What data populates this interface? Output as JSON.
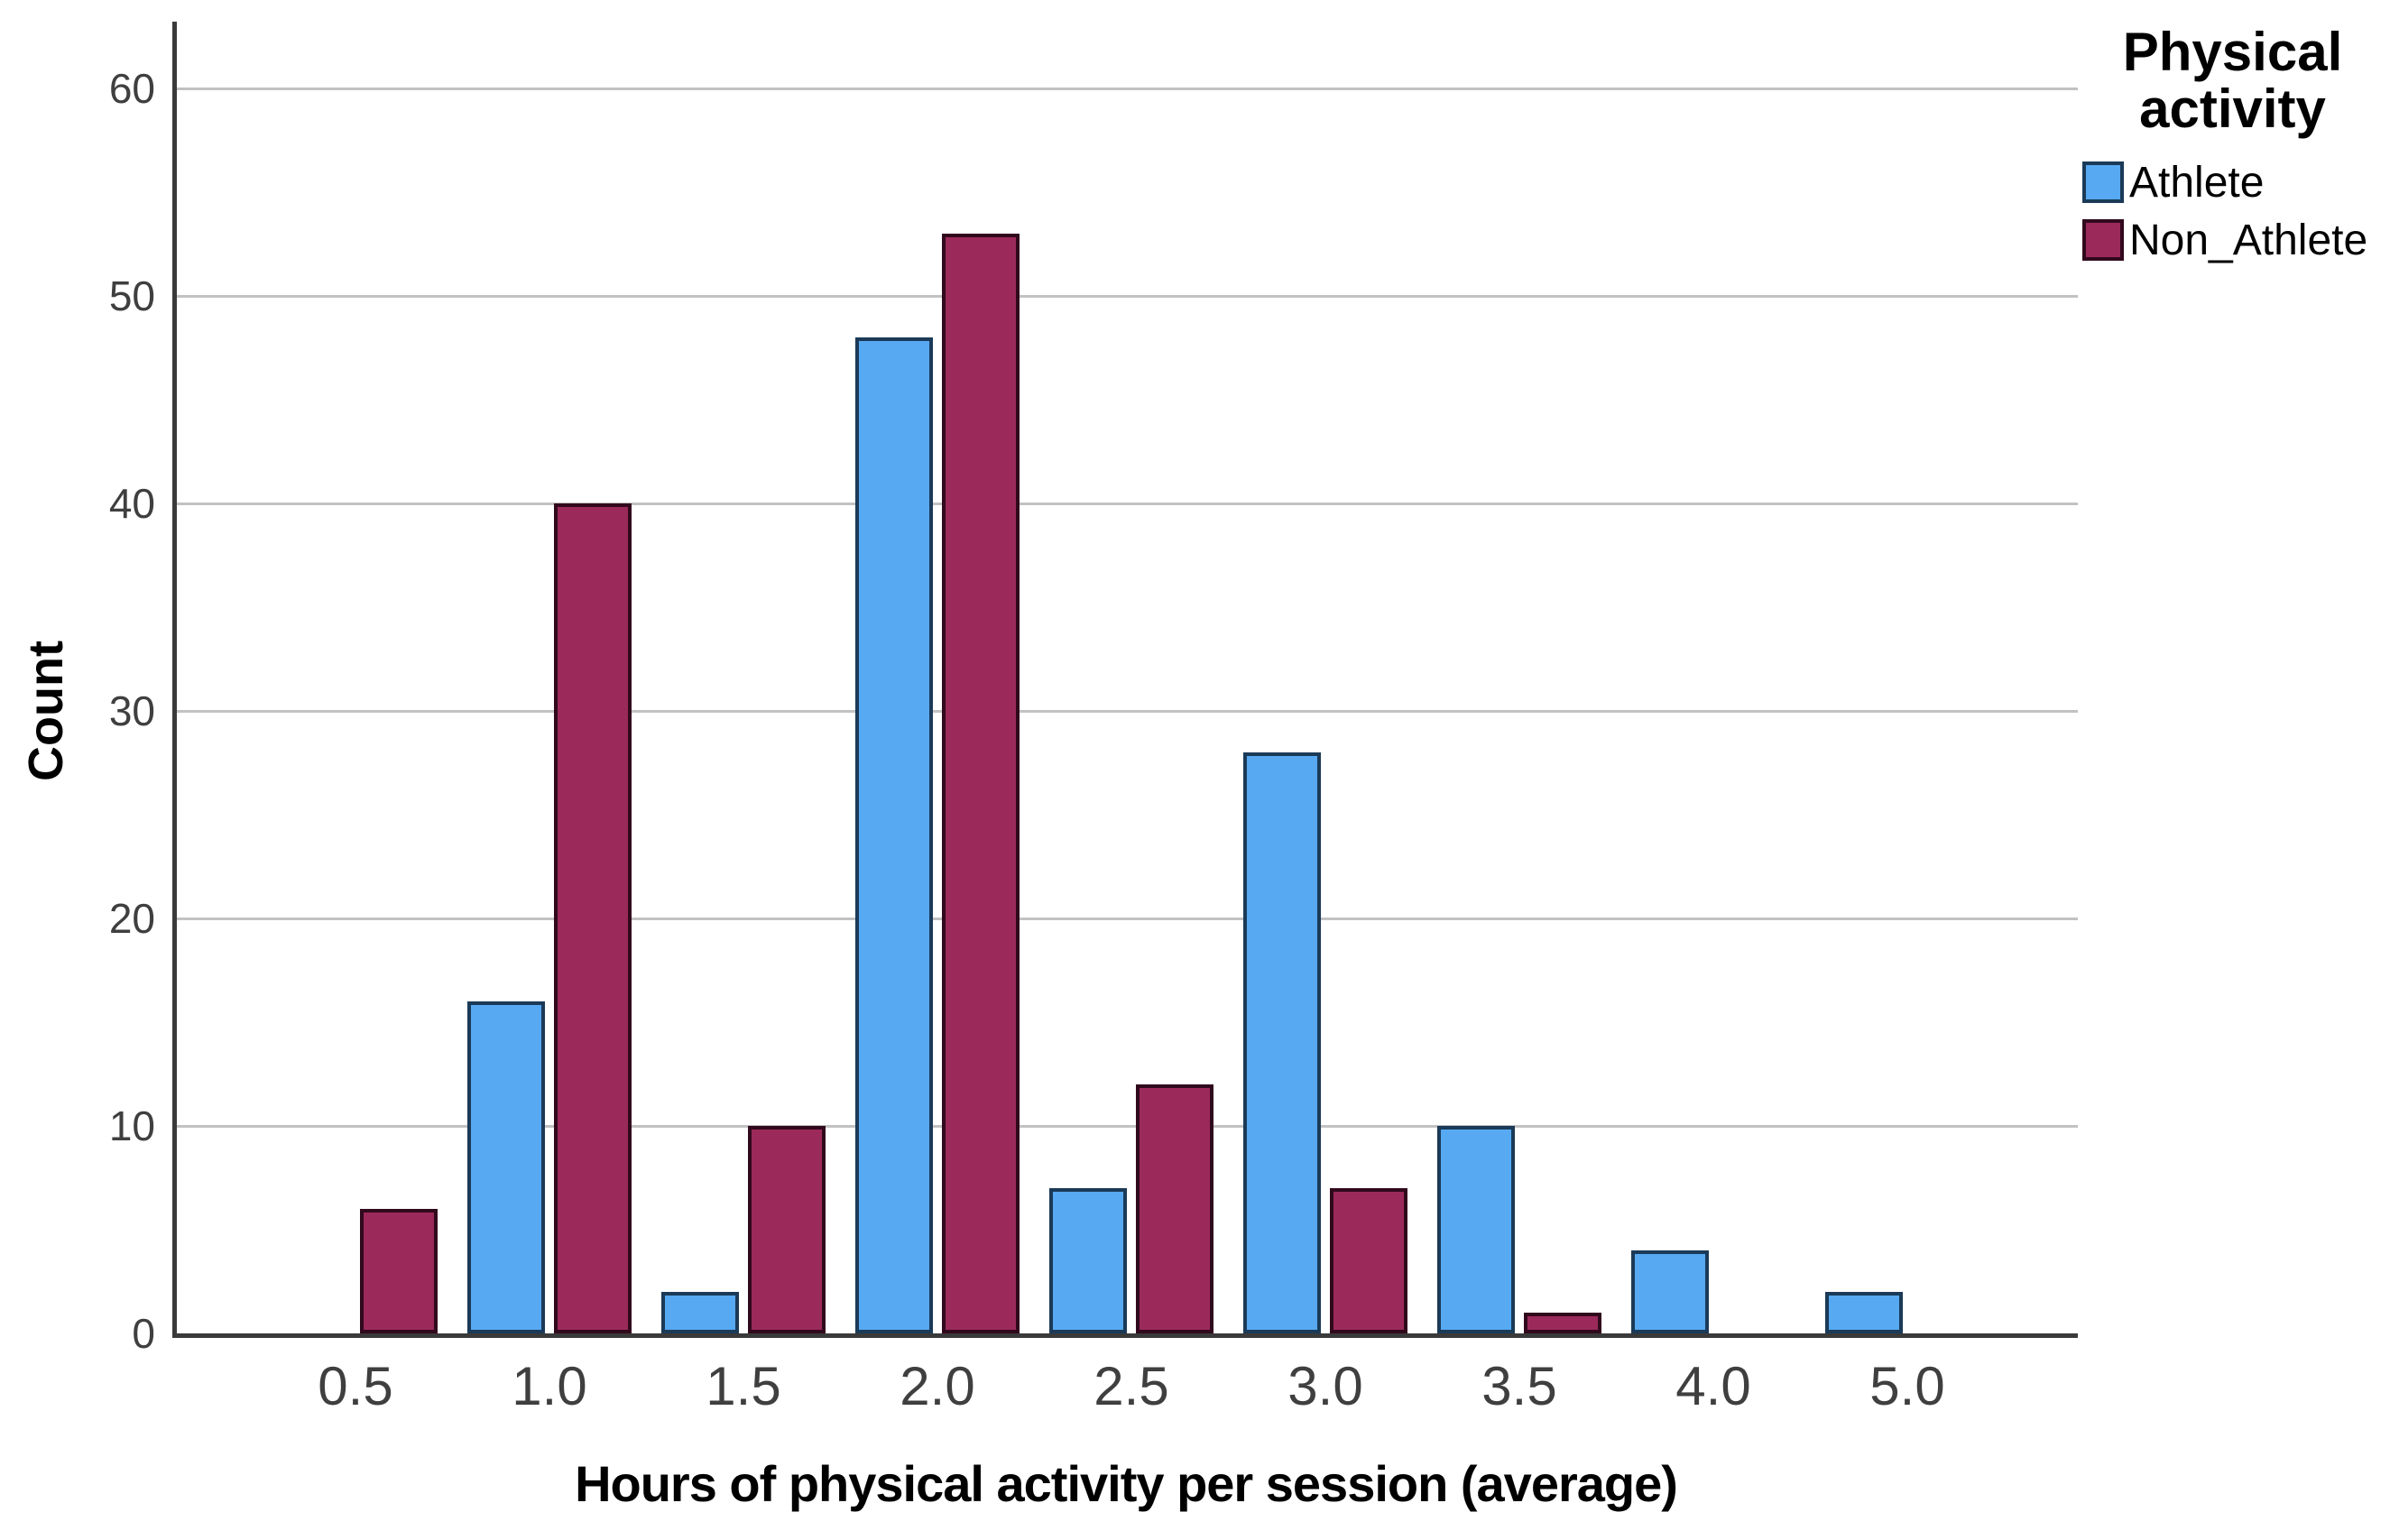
{
  "chart_data": {
    "type": "bar",
    "title": "",
    "categories": [
      "0.5",
      "1.0",
      "1.5",
      "2.0",
      "2.5",
      "3.0",
      "3.5",
      "4.0",
      "5.0"
    ],
    "series": [
      {
        "name": "Athlete",
        "color": "#57a9f2",
        "border_color": "#1b3a57",
        "values": [
          0,
          16,
          2,
          48,
          7,
          28,
          10,
          4,
          2
        ]
      },
      {
        "name": "Non_Athlete",
        "color": "#9b2a5a",
        "border_color": "#31091d",
        "values": [
          6,
          40,
          10,
          53,
          12,
          7,
          1,
          0,
          0
        ]
      }
    ],
    "xlabel": "Hours of physical activity per session (average)",
    "ylabel": "Count",
    "ylim": [
      0,
      60
    ],
    "ytick_step": 10,
    "yticks": [
      "0",
      "10",
      "20",
      "30",
      "40",
      "50",
      "60"
    ],
    "grid": "horizontal",
    "legend_title": "Physical activity",
    "legend_title_lines": [
      "Physical",
      "activity"
    ],
    "legend_position": "top-right"
  }
}
